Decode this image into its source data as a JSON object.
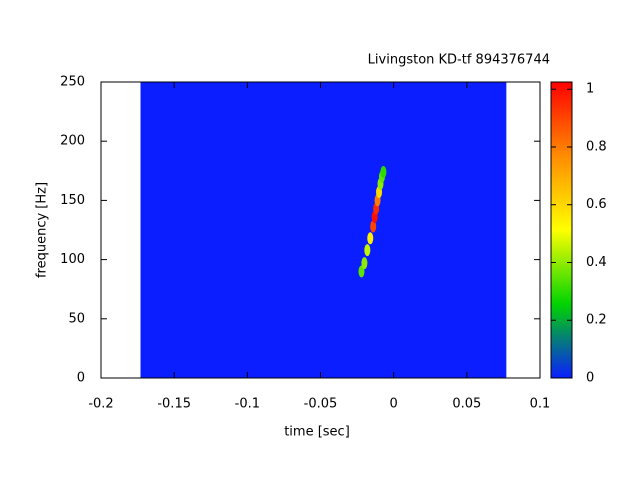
{
  "chart_data": {
    "type": "spectrogram",
    "title": "Livingston KD-tf 894376744",
    "x_label": "time [sec]",
    "y_label": "frequency [Hz]",
    "xlim": [
      -0.2,
      0.1
    ],
    "xticks": [
      -0.2,
      -0.15,
      -0.1,
      -0.05,
      0,
      0.05,
      0.1
    ],
    "ylim": [
      0,
      250
    ],
    "yticks": [
      0,
      50,
      100,
      150,
      200,
      250
    ],
    "image_xlim": [
      -0.173,
      0.077
    ],
    "clim": [
      0,
      1.025
    ],
    "cticks": [
      0,
      0.2,
      0.4,
      0.6,
      0.8,
      1
    ],
    "colormap": [
      "#0a1eff",
      "#00d400",
      "#ffff00",
      "#ff8c00",
      "#ff0000"
    ],
    "track": {
      "x": [
        -0.022,
        -0.02,
        -0.018,
        -0.016,
        -0.014,
        -0.013,
        -0.012,
        -0.011,
        -0.01,
        -0.009,
        -0.008,
        -0.007
      ],
      "y": [
        90,
        97,
        108,
        118,
        128,
        136,
        143,
        150,
        157,
        164,
        170,
        174
      ],
      "values": [
        0.35,
        0.4,
        0.45,
        0.55,
        0.9,
        1.0,
        0.95,
        0.8,
        0.6,
        0.4,
        0.35,
        0.3
      ]
    }
  }
}
